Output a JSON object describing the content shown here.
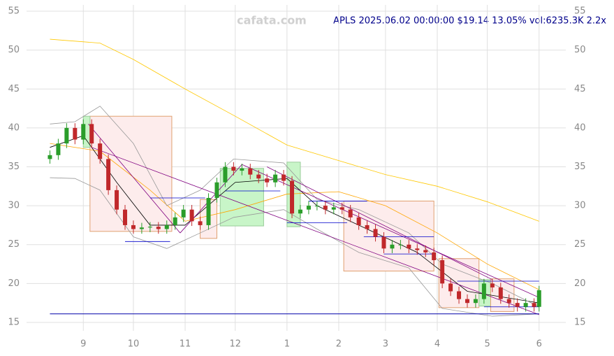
{
  "chart_data": {
    "type": "candlestick",
    "title": "APLS 2025.06.02 00:00:00 $19.14 13.05% vol:6235.3K 2.2x",
    "watermark": "cafata.com",
    "x": [
      -20,
      -15,
      -10,
      -5,
      0,
      5,
      10,
      15,
      20,
      25,
      30,
      35,
      40,
      45,
      50,
      55,
      60,
      65,
      70,
      75,
      80,
      85,
      90,
      95,
      100,
      105,
      110,
      115,
      120,
      125,
      130,
      135,
      140,
      145,
      150,
      155,
      160,
      165,
      170,
      175,
      180,
      185,
      190,
      195,
      200,
      205,
      210,
      215,
      220,
      225,
      230,
      235,
      240,
      245,
      250,
      255,
      260,
      265,
      270,
      273
    ],
    "open": [
      36,
      36.5,
      38,
      40,
      38.5,
      40.5,
      38,
      36,
      32,
      29.5,
      27.5,
      27,
      27.2,
      27.3,
      27,
      27.5,
      28.5,
      29.5,
      28,
      27.5,
      31,
      33,
      35,
      34.5,
      34.8,
      34,
      33.5,
      33,
      34,
      33.2,
      29,
      29.5,
      30,
      30,
      29.5,
      29.8,
      29.5,
      28.5,
      27.5,
      27,
      26,
      24.5,
      25,
      25,
      24.5,
      24.3,
      24,
      23,
      20,
      19,
      18,
      17.5,
      18,
      20,
      19.5,
      18,
      17.5,
      17,
      17.5,
      17
    ],
    "high": [
      37.1,
      38.6,
      40.6,
      40.6,
      41.1,
      41.1,
      38.6,
      36.6,
      32.6,
      30.1,
      28.1,
      27.8,
      27.9,
      27.9,
      28.1,
      29.1,
      30.1,
      30.1,
      28.6,
      31.6,
      33.6,
      35.6,
      35.6,
      35.4,
      35.4,
      34.6,
      34.1,
      34.6,
      34.6,
      33.8,
      30.1,
      30.6,
      30.6,
      30.6,
      30.4,
      30.4,
      30.1,
      29.1,
      28.1,
      27.6,
      26.6,
      25.6,
      25.6,
      25.6,
      25.1,
      24.9,
      24.6,
      23.6,
      20.6,
      19.6,
      18.6,
      18.6,
      20.6,
      20.6,
      20.1,
      18.6,
      18.1,
      18.1,
      18.1,
      19.7
    ],
    "low": [
      35.4,
      35.9,
      37.4,
      37.9,
      37.9,
      37.4,
      35.4,
      31.4,
      28.9,
      26.9,
      26.4,
      26.4,
      26.6,
      26.4,
      26.4,
      26.9,
      27.9,
      27.4,
      26.9,
      26.9,
      30.4,
      32.4,
      33.9,
      33.9,
      33.4,
      32.9,
      32.4,
      32.4,
      32.6,
      28.4,
      28.4,
      28.9,
      29.4,
      28.9,
      28.9,
      28.9,
      27.9,
      26.9,
      26.4,
      25.4,
      23.9,
      23.9,
      24.4,
      23.9,
      23.7,
      23.4,
      22.4,
      19.4,
      18.4,
      17.4,
      16.9,
      16.9,
      17.4,
      18.9,
      17.4,
      16.9,
      16.4,
      16.4,
      16.4,
      16.4
    ],
    "close": [
      36.5,
      38,
      40,
      38.5,
      40.5,
      38,
      36,
      32,
      29.5,
      27.5,
      27,
      27.2,
      27.3,
      27,
      27.5,
      28.5,
      29.5,
      28,
      27.5,
      31,
      33,
      35,
      34.5,
      34.8,
      34,
      33.5,
      33,
      34,
      33.2,
      29,
      29.5,
      30,
      30,
      29.5,
      29.8,
      29.5,
      28.5,
      27.5,
      27,
      26,
      24.5,
      25,
      25,
      24.5,
      24.3,
      24,
      23,
      20,
      19,
      18,
      17.5,
      18,
      20,
      19.5,
      18,
      17.5,
      17,
      17.5,
      17,
      19.14
    ],
    "up_color": "#2a9d2a",
    "down_color": "#c0282b",
    "lines": [
      {
        "color": "#ffc800",
        "x": [
          -20,
          10,
          30,
          61,
          91,
          122,
          153,
          181,
          212,
          242,
          273
        ],
        "values": [
          51.4,
          50.9,
          48.8,
          45,
          41.5,
          37.8,
          35.8,
          34,
          32.5,
          30.5,
          28
        ]
      },
      {
        "color": "#ffa500",
        "x": [
          -20,
          10,
          40,
          61,
          91,
          122,
          153,
          181,
          212,
          242,
          273
        ],
        "values": [
          38,
          37,
          32,
          28,
          29.5,
          31.5,
          31.8,
          30,
          26.5,
          22.5,
          19.2
        ]
      },
      {
        "color": "#000000",
        "x": [
          -20,
          0,
          20,
          40,
          61,
          91,
          122,
          140,
          170,
          200,
          230,
          273
        ],
        "values": [
          37.5,
          39,
          33,
          27.5,
          27.5,
          33,
          33.5,
          30,
          27,
          24,
          19,
          17.5
        ]
      },
      {
        "color": "#999999",
        "x": [
          -20,
          -5,
          10,
          30,
          50,
          70,
          90,
          120,
          140,
          165,
          195,
          215,
          245,
          273
        ],
        "values": [
          40.5,
          40.8,
          42.8,
          38,
          30,
          32,
          36,
          35.5,
          30.8,
          29.5,
          26.5,
          22.5,
          20,
          17
        ]
      },
      {
        "color": "#999999",
        "x": [
          -20,
          -5,
          10,
          30,
          50,
          70,
          90,
          120,
          140,
          165,
          195,
          215,
          245,
          273
        ],
        "values": [
          33.6,
          33.5,
          32,
          26,
          24.5,
          26.5,
          28.5,
          29.5,
          27,
          24,
          22,
          16.8,
          15.8,
          16.1
        ]
      }
    ],
    "boxes": [
      [
        4,
        53,
        26.7,
        41.5,
        "down"
      ],
      [
        0,
        4,
        37.5,
        41.5,
        "up"
      ],
      [
        70,
        80,
        25.8,
        30.8,
        "down"
      ],
      [
        82,
        108,
        27.4,
        34.8,
        "up"
      ],
      [
        122,
        130,
        27.3,
        35.6,
        "up"
      ],
      [
        156,
        210,
        21.6,
        30.6,
        "down"
      ],
      [
        213,
        237,
        16.9,
        23.2,
        "down"
      ],
      [
        237,
        244,
        17.1,
        20.5,
        "up"
      ],
      [
        244,
        258,
        16.4,
        20.6,
        "down"
      ]
    ],
    "trend_lines": [
      [
        3,
        40.5,
        58,
        26.5
      ],
      [
        58,
        26.5,
        95,
        35.3
      ],
      [
        95,
        35.3,
        273,
        18.2
      ],
      [
        5,
        37.5,
        273,
        16
      ],
      [
        110,
        35,
        245,
        20.5
      ]
    ],
    "levels": [
      [
        25,
        52,
        25.4
      ],
      [
        40,
        73,
        31
      ],
      [
        85,
        118,
        31.9
      ],
      [
        122,
        158,
        27.8
      ],
      [
        135,
        170,
        30.6
      ],
      [
        168,
        210,
        26
      ],
      [
        180,
        211,
        23.8
      ],
      [
        224,
        273,
        20.3
      ],
      [
        240,
        273,
        17
      ]
    ],
    "baseline": 16.1,
    "xlim": [
      -34,
      289
    ],
    "ylim": [
      13.92,
      55.81
    ],
    "xticks": [
      {
        "value": 0,
        "label": "9"
      },
      {
        "value": 30,
        "label": "10"
      },
      {
        "value": 61,
        "label": "11"
      },
      {
        "value": 91,
        "label": "12"
      },
      {
        "value": 122,
        "label": "1"
      },
      {
        "value": 153,
        "label": "2"
      },
      {
        "value": 181,
        "label": "3"
      },
      {
        "value": 212,
        "label": "4"
      },
      {
        "value": 242,
        "label": "5"
      },
      {
        "value": 273,
        "label": "6"
      }
    ],
    "yticks": [
      15,
      20,
      25,
      30,
      35,
      40,
      45,
      50,
      55
    ],
    "grid": true
  }
}
